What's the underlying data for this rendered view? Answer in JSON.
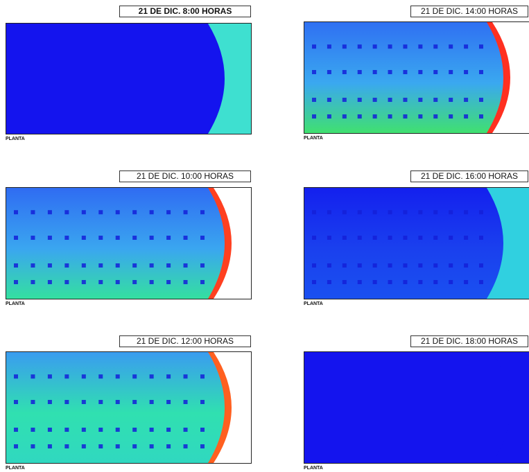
{
  "panels": [
    {
      "title": "21 DE DIC. 8:00 HORAS",
      "caption": "PLANTA"
    },
    {
      "title": "21 DE DIC. 10:00 HORAS",
      "caption": "PLANTA"
    },
    {
      "title": "21 DE DIC. 12:00 HORAS",
      "caption": "PLANTA"
    },
    {
      "title": "21 DE DIC. 14:00 HORAS",
      "caption": "PLANTA"
    },
    {
      "title": "21 DE DIC. 16:00 HORAS",
      "caption": "PLANTA"
    },
    {
      "title": "21 DE DIC. 18:00 HORAS",
      "caption": "PLANTA"
    }
  ]
}
